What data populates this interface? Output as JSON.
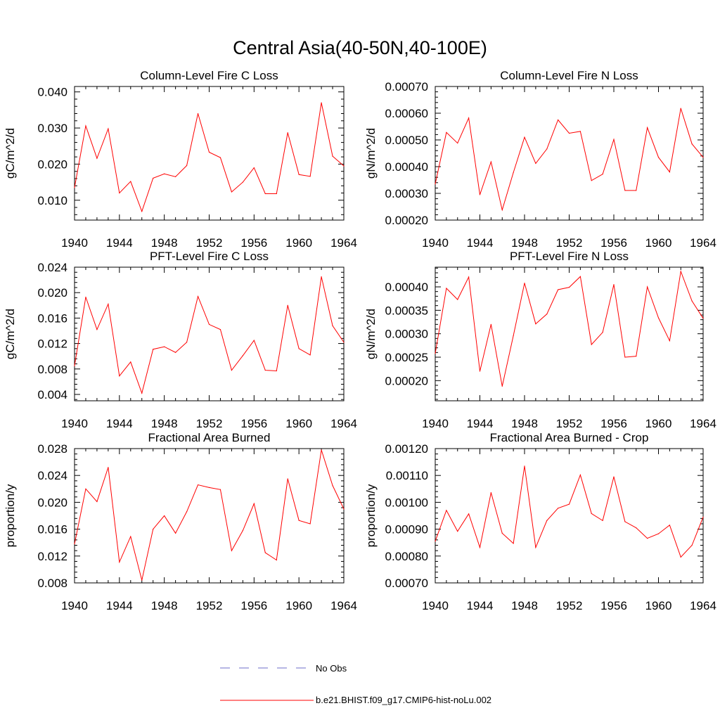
{
  "title": "Central Asia(40-50N,40-100E)",
  "colors": {
    "model": "#ff0000",
    "obs": "#6e6ec8",
    "axis": "#000000",
    "background": "#ffffff"
  },
  "legend": {
    "obs_label": "No Obs",
    "model_label": "b.e21.BHIST.f09_g17.CMIP6-hist-noLu.002"
  },
  "chart_data": [
    {
      "type": "line",
      "title": "Column-Level Fire C Loss",
      "xlabel": "",
      "ylabel": "gC/m^2/d",
      "xlim": [
        1940,
        1964
      ],
      "ylim": [
        0.0045,
        0.0415
      ],
      "xticks": [
        "1940",
        "1944",
        "1948",
        "1952",
        "1956",
        "1960",
        "1964"
      ],
      "yticks": [
        "0.010",
        "0.020",
        "0.030",
        "0.040"
      ],
      "grid": false,
      "series": [
        {
          "x": [
            1940,
            1941,
            1942,
            1943,
            1944,
            1945,
            1946,
            1947,
            1948,
            1949,
            1950,
            1951,
            1952,
            1953,
            1954,
            1955,
            1956,
            1957,
            1958,
            1959,
            1960,
            1961,
            1962,
            1963,
            1964
          ],
          "values": [
            0.0135,
            0.0306,
            0.0216,
            0.0298,
            0.012,
            0.0152,
            0.0069,
            0.0161,
            0.0173,
            0.0165,
            0.0196,
            0.034,
            0.0233,
            0.0218,
            0.0123,
            0.015,
            0.019,
            0.0118,
            0.0118,
            0.0287,
            0.0171,
            0.0166,
            0.037,
            0.0222,
            0.0195
          ]
        }
      ]
    },
    {
      "type": "line",
      "title": "Column-Level Fire N Loss",
      "xlabel": "",
      "ylabel": "gN/m^2/d",
      "xlim": [
        1940,
        1964
      ],
      "ylim": [
        0.0002,
        0.0007
      ],
      "xticks": [
        "1940",
        "1944",
        "1948",
        "1952",
        "1956",
        "1960",
        "1964"
      ],
      "yticks": [
        "0.00020",
        "0.00030",
        "0.00040",
        "0.00050",
        "0.00060",
        "0.00070"
      ],
      "grid": false,
      "series": [
        {
          "x": [
            1940,
            1941,
            1942,
            1943,
            1944,
            1945,
            1946,
            1947,
            1948,
            1949,
            1950,
            1951,
            1952,
            1953,
            1954,
            1955,
            1956,
            1957,
            1958,
            1959,
            1960,
            1961,
            1962,
            1963,
            1964
          ],
          "values": [
            0.000335,
            0.000528,
            0.000488,
            0.000582,
            0.000295,
            0.000418,
            0.000238,
            0.000378,
            0.00051,
            0.000412,
            0.000466,
            0.000575,
            0.000525,
            0.000532,
            0.000348,
            0.000372,
            0.000502,
            0.000311,
            0.000311,
            0.000546,
            0.000435,
            0.00038,
            0.000618,
            0.000485,
            0.000435
          ]
        }
      ]
    },
    {
      "type": "line",
      "title": "PFT-Level Fire C Loss",
      "xlabel": "",
      "ylabel": "gC/m^2/d",
      "xlim": [
        1940,
        1964
      ],
      "ylim": [
        0.003,
        0.024
      ],
      "xticks": [
        "1940",
        "1944",
        "1948",
        "1952",
        "1956",
        "1960",
        "1964"
      ],
      "yticks": [
        "0.004",
        "0.008",
        "0.012",
        "0.016",
        "0.020",
        "0.024"
      ],
      "grid": false,
      "series": [
        {
          "x": [
            1940,
            1941,
            1942,
            1943,
            1944,
            1945,
            1946,
            1947,
            1948,
            1949,
            1950,
            1951,
            1952,
            1953,
            1954,
            1955,
            1956,
            1957,
            1958,
            1959,
            1960,
            1961,
            1962,
            1963,
            1964
          ],
          "values": [
            0.0085,
            0.0193,
            0.0142,
            0.0182,
            0.0069,
            0.0091,
            0.0042,
            0.0111,
            0.0115,
            0.0106,
            0.0122,
            0.0194,
            0.015,
            0.0142,
            0.0078,
            0.0101,
            0.0125,
            0.0078,
            0.0077,
            0.018,
            0.0112,
            0.0102,
            0.0225,
            0.0148,
            0.0122
          ]
        }
      ]
    },
    {
      "type": "line",
      "title": "PFT-Level Fire N Loss",
      "xlabel": "",
      "ylabel": "gN/m^2/d",
      "xlim": [
        1940,
        1964
      ],
      "ylim": [
        0.000157,
        0.000442
      ],
      "xticks": [
        "1940",
        "1944",
        "1948",
        "1952",
        "1956",
        "1960",
        "1964"
      ],
      "yticks": [
        "0.00020",
        "0.00025",
        "0.00030",
        "0.00035",
        "0.00040"
      ],
      "grid": false,
      "series": [
        {
          "x": [
            1940,
            1941,
            1942,
            1943,
            1944,
            1945,
            1946,
            1947,
            1948,
            1949,
            1950,
            1951,
            1952,
            1953,
            1954,
            1955,
            1956,
            1957,
            1958,
            1959,
            1960,
            1961,
            1962,
            1963,
            1964
          ],
          "values": [
            0.000258,
            0.000397,
            0.000373,
            0.000421,
            0.00022,
            0.00032,
            0.000188,
            0.000296,
            0.000408,
            0.000321,
            0.000342,
            0.000394,
            0.000399,
            0.000422,
            0.000277,
            0.000303,
            0.000405,
            0.00025,
            0.000252,
            0.0004,
            0.000334,
            0.000285,
            0.000433,
            0.00037,
            0.000333
          ]
        }
      ]
    },
    {
      "type": "line",
      "title": "Fractional Area Burned",
      "xlabel": "",
      "ylabel": "proportion/y",
      "xlim": [
        1940,
        1964
      ],
      "ylim": [
        0.008,
        0.028
      ],
      "xticks": [
        "1940",
        "1944",
        "1948",
        "1952",
        "1956",
        "1960",
        "1964"
      ],
      "yticks": [
        "0.008",
        "0.012",
        "0.016",
        "0.020",
        "0.024",
        "0.028"
      ],
      "grid": false,
      "series": [
        {
          "x": [
            1940,
            1941,
            1942,
            1943,
            1944,
            1945,
            1946,
            1947,
            1948,
            1949,
            1950,
            1951,
            1952,
            1953,
            1954,
            1955,
            1956,
            1957,
            1958,
            1959,
            1960,
            1961,
            1962,
            1963,
            1964
          ],
          "values": [
            0.0138,
            0.022,
            0.0201,
            0.0252,
            0.0111,
            0.0149,
            0.0084,
            0.016,
            0.018,
            0.0154,
            0.0186,
            0.0226,
            0.0222,
            0.0219,
            0.0128,
            0.0158,
            0.0198,
            0.0125,
            0.0114,
            0.0235,
            0.0173,
            0.0168,
            0.0278,
            0.0225,
            0.019
          ]
        }
      ]
    },
    {
      "type": "line",
      "title": "Fractional Area Burned - Crop",
      "xlabel": "",
      "ylabel": "proportion/y",
      "xlim": [
        1940,
        1964
      ],
      "ylim": [
        0.0007,
        0.0012
      ],
      "xticks": [
        "1940",
        "1944",
        "1948",
        "1952",
        "1956",
        "1960",
        "1964"
      ],
      "yticks": [
        "0.00070",
        "0.00080",
        "0.00090",
        "0.00100",
        "0.00110",
        "0.00120"
      ],
      "grid": false,
      "series": [
        {
          "x": [
            1940,
            1941,
            1942,
            1943,
            1944,
            1945,
            1946,
            1947,
            1948,
            1949,
            1950,
            1951,
            1952,
            1953,
            1954,
            1955,
            1956,
            1957,
            1958,
            1959,
            1960,
            1961,
            1962,
            1963,
            1964
          ],
          "values": [
            0.000855,
            0.00097,
            0.000892,
            0.000957,
            0.000832,
            0.001036,
            0.000885,
            0.000847,
            0.001135,
            0.000832,
            0.000932,
            0.000978,
            0.000993,
            0.001102,
            0.000958,
            0.000932,
            0.001095,
            0.000928,
            0.000905,
            0.000866,
            0.000883,
            0.000915,
            0.000796,
            0.00084,
            0.000945
          ]
        }
      ]
    }
  ]
}
